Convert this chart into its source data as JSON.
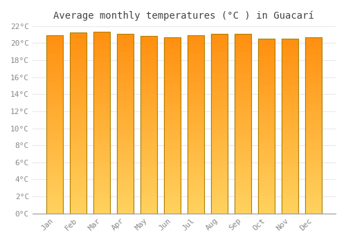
{
  "title": "Average monthly temperatures (°C ) in Guacarí",
  "months": [
    "Jan",
    "Feb",
    "Mar",
    "Apr",
    "May",
    "Jun",
    "Jul",
    "Aug",
    "Sep",
    "Oct",
    "Nov",
    "Dec"
  ],
  "values": [
    20.9,
    21.2,
    21.3,
    21.1,
    20.8,
    20.7,
    20.9,
    21.1,
    21.1,
    20.5,
    20.5,
    20.7
  ],
  "bar_color_mid": "#FFB830",
  "bar_color_bottom": "#FFD060",
  "bar_color_top": "#FFA010",
  "bar_edge_color": "#B08000",
  "ylim": [
    0,
    22
  ],
  "ytick_step": 2,
  "background_color": "#FFFFFF",
  "grid_color": "#E8E8EE",
  "title_fontsize": 10,
  "tick_fontsize": 8,
  "tick_color": "#888888"
}
